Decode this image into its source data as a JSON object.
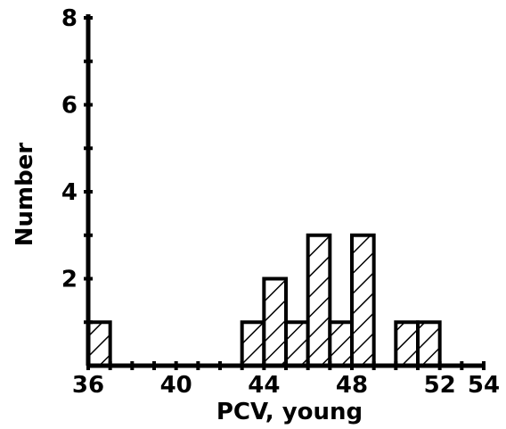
{
  "chart_data": {
    "type": "bar",
    "title": "",
    "xlabel": "PCV, young",
    "ylabel": "Number",
    "xlim": [
      36,
      54
    ],
    "ylim": [
      0,
      8
    ],
    "x_ticks": [
      36,
      40,
      44,
      48,
      52,
      54
    ],
    "y_ticks": [
      2,
      4,
      6,
      8
    ],
    "bin_width": 1,
    "grid": false,
    "legend": "none",
    "bars": [
      {
        "x0": 36,
        "x1": 37,
        "value": 1
      },
      {
        "x0": 43,
        "x1": 44,
        "value": 1
      },
      {
        "x0": 44,
        "x1": 45,
        "value": 2
      },
      {
        "x0": 45,
        "x1": 46,
        "value": 1
      },
      {
        "x0": 46,
        "x1": 47,
        "value": 3
      },
      {
        "x0": 47,
        "x1": 48,
        "value": 1
      },
      {
        "x0": 48,
        "x1": 49,
        "value": 3
      },
      {
        "x0": 50,
        "x1": 51,
        "value": 1
      },
      {
        "x0": 51,
        "x1": 52,
        "value": 1
      }
    ],
    "colors": {
      "ink": "#000000",
      "background": "#ffffff"
    }
  }
}
